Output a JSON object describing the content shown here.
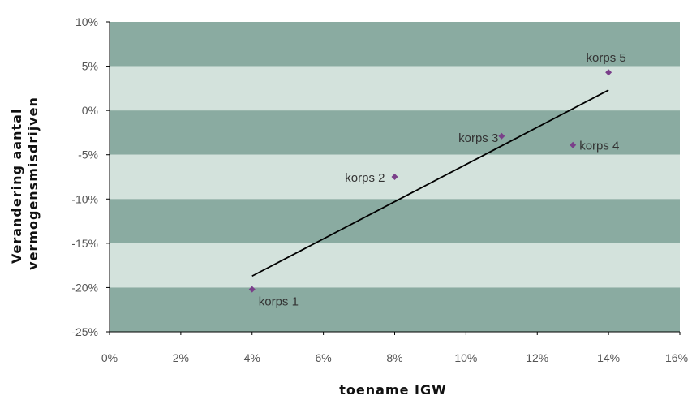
{
  "chart_data": {
    "type": "scatter",
    "xlabel": "toename IGW",
    "ylabel": [
      "Verandering aantal",
      "vermogensmisdrijven"
    ],
    "xlim": [
      0,
      16
    ],
    "ylim": [
      -25,
      10
    ],
    "x_ticks": [
      0,
      2,
      4,
      6,
      8,
      10,
      12,
      14,
      16
    ],
    "y_ticks": [
      10,
      5,
      0,
      -5,
      -10,
      -15,
      -20,
      -25
    ],
    "x_tick_labels": [
      "0%",
      "2%",
      "4%",
      "6%",
      "8%",
      "10%",
      "12%",
      "14%",
      "16%"
    ],
    "y_tick_labels": [
      "10%",
      "5%",
      "0%",
      "-5%",
      "-10%",
      "-15%",
      "-20%",
      "-25%"
    ],
    "points": [
      {
        "label": "korps 1",
        "x": 4,
        "y": -20.2
      },
      {
        "label": "korps 2",
        "x": 8,
        "y": -7.5
      },
      {
        "label": "korps 3",
        "x": 11,
        "y": -2.9
      },
      {
        "label": "korps 4",
        "x": 13,
        "y": -3.9
      },
      {
        "label": "korps 5",
        "x": 14,
        "y": 4.3
      }
    ],
    "trendline": {
      "x": [
        4,
        14
      ],
      "y": [
        -18.7,
        2.3
      ]
    },
    "grid": "alternating horizontal bands",
    "colors": {
      "band_dark": "#8aaba1",
      "band_light": "#d3e2dc",
      "marker": "#7a3f8a",
      "trendline": "#000000",
      "axis": "#000000"
    }
  }
}
